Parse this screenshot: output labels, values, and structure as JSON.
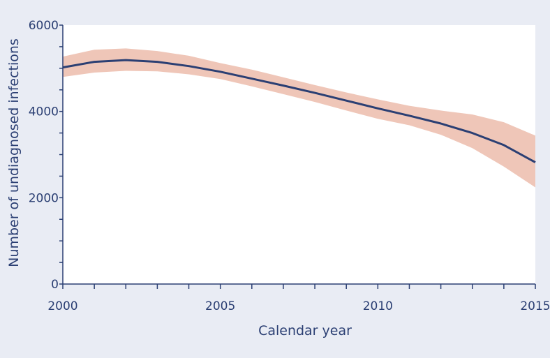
{
  "chart_data": {
    "type": "line",
    "title": "",
    "xlabel": "Calendar year",
    "ylabel": "Number of undiagnosed infections",
    "xlim": [
      2000,
      2015
    ],
    "ylim": [
      0,
      6000
    ],
    "x_ticks": [
      2000,
      2005,
      2010,
      2015
    ],
    "x_minor_ticks": [
      2000,
      2001,
      2002,
      2003,
      2004,
      2005,
      2006,
      2007,
      2008,
      2009,
      2010,
      2011,
      2012,
      2013,
      2014,
      2015
    ],
    "y_ticks": [
      0,
      2000,
      4000,
      6000
    ],
    "grid": false,
    "legend": "none",
    "series": [
      {
        "x": [
          2000,
          2001,
          2002,
          2003,
          2004,
          2005,
          2006,
          2007,
          2008,
          2009,
          2010,
          2011,
          2012,
          2013,
          2014,
          2015
        ],
        "y": [
          5020,
          5150,
          5190,
          5150,
          5050,
          4920,
          4760,
          4600,
          4430,
          4250,
          4070,
          3900,
          3720,
          3500,
          3220,
          2820
        ],
        "lower": [
          4800,
          4900,
          4940,
          4930,
          4860,
          4750,
          4580,
          4400,
          4220,
          4020,
          3830,
          3680,
          3460,
          3150,
          2720,
          2240
        ],
        "upper": [
          5270,
          5430,
          5460,
          5400,
          5290,
          5120,
          4970,
          4790,
          4610,
          4440,
          4280,
          4130,
          4020,
          3930,
          3750,
          3440
        ],
        "line_color": "#2b3f73",
        "band_color": "#efc6b8"
      }
    ]
  }
}
